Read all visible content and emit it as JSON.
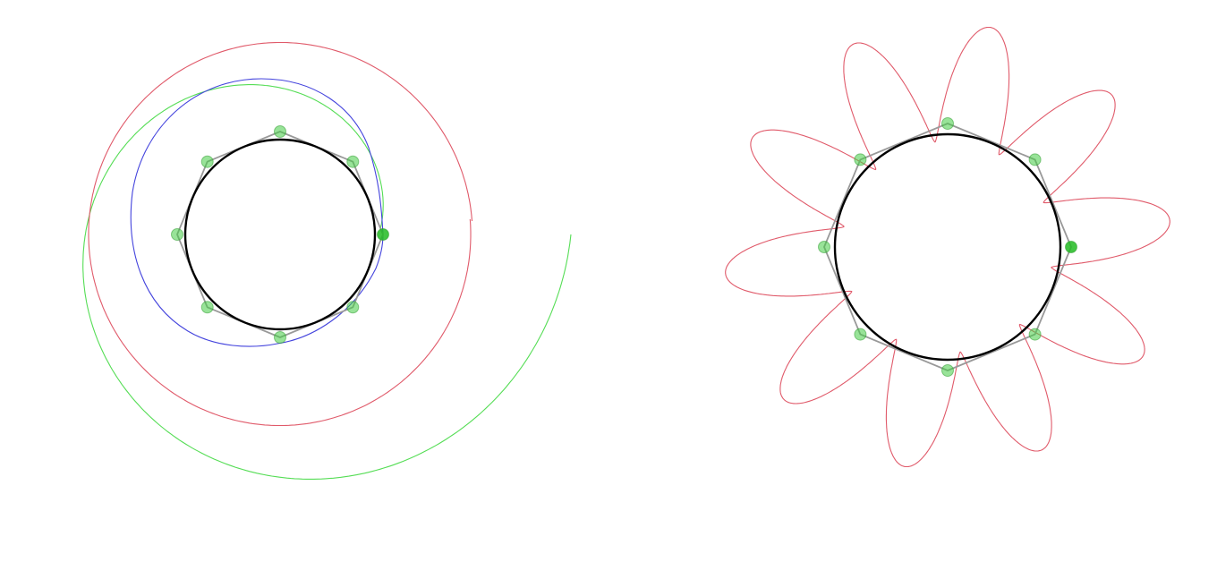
{
  "colors": {
    "background": "#ffffff",
    "circle": "#000000",
    "polygon": "#999999",
    "vertex_fill": "#44cc44",
    "vertex_stroke": "#2a9a2a",
    "active_vertex_fill": "#22bb22",
    "spiral_green": "#55dd55",
    "spiral_red": "#e05a6a",
    "spiral_blue": "#4444dd",
    "rose": "#e05a6a"
  },
  "left_panel": {
    "polygon_sides": 8,
    "active_vertex": "rightmost",
    "curves": [
      {
        "name": "blue",
        "color_key": "spiral_blue"
      },
      {
        "name": "red",
        "color_key": "spiral_red"
      },
      {
        "name": "green",
        "color_key": "spiral_green"
      }
    ]
  },
  "right_panel": {
    "polygon_sides": 8,
    "active_vertex": "rightmost",
    "rose_petals": 10,
    "curve_color_key": "rose"
  }
}
